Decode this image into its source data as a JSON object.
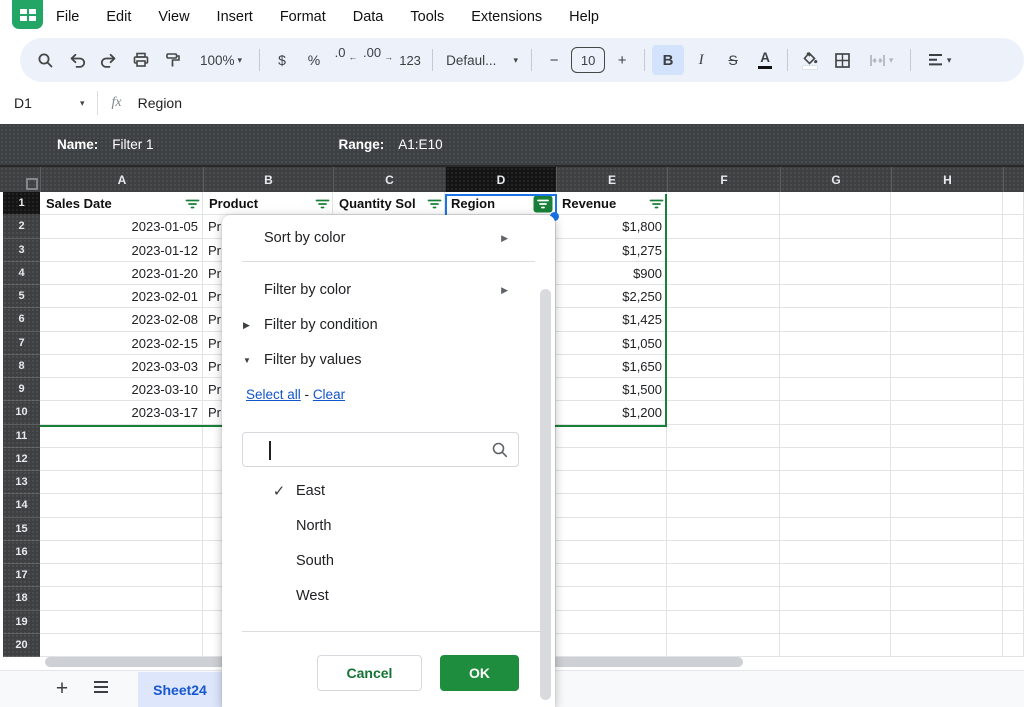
{
  "menubar": {
    "items": [
      "File",
      "Edit",
      "View",
      "Insert",
      "Format",
      "Data",
      "Tools",
      "Extensions",
      "Help"
    ]
  },
  "toolbar": {
    "zoom": "100%",
    "format_currency": "$",
    "format_percent": "%",
    "decrease_decimals": ".0",
    "increase_decimals": ".00",
    "more_formats": "123",
    "font_name": "Defaul...",
    "decrease_font_size": "−",
    "font_size": "10",
    "increase_font_size": "+",
    "bold": "B",
    "italic": "I",
    "strikethrough": "S",
    "text_color": "A"
  },
  "formula_bar": {
    "cell_reference": "D1",
    "fx_label": "fx",
    "value": "Region"
  },
  "filter_view_bar": {
    "name_label": "Name:",
    "name_value": "Filter 1",
    "range_label": "Range:",
    "range_value": "A1:E10"
  },
  "grid": {
    "column_letters": [
      "A",
      "B",
      "C",
      "D",
      "E",
      "F",
      "G",
      "H",
      ""
    ],
    "selected_column": "D",
    "selected_row": 1,
    "row_count": 20,
    "header_row": [
      {
        "label": "Sales Date",
        "filter_active": false
      },
      {
        "label": "Product",
        "filter_active": false
      },
      {
        "label": "Quantity Sol",
        "filter_active": false
      },
      {
        "label": "Region",
        "filter_active": true
      },
      {
        "label": "Revenue",
        "filter_active": false
      }
    ],
    "data_rows": [
      {
        "row": 2,
        "sales_date": "2023-01-05",
        "product": "Pr",
        "revenue": "$1,800"
      },
      {
        "row": 3,
        "sales_date": "2023-01-12",
        "product": "Pr",
        "revenue": "$1,275"
      },
      {
        "row": 4,
        "sales_date": "2023-01-20",
        "product": "Pr",
        "revenue": "$900"
      },
      {
        "row": 5,
        "sales_date": "2023-02-01",
        "product": "Pr",
        "revenue": "$2,250"
      },
      {
        "row": 6,
        "sales_date": "2023-02-08",
        "product": "Pr",
        "revenue": "$1,425"
      },
      {
        "row": 7,
        "sales_date": "2023-02-15",
        "product": "Pr",
        "revenue": "$1,050"
      },
      {
        "row": 8,
        "sales_date": "2023-03-03",
        "product": "Pr",
        "revenue": "$1,650"
      },
      {
        "row": 9,
        "sales_date": "2023-03-10",
        "product": "Pr",
        "revenue": "$1,500"
      },
      {
        "row": 10,
        "sales_date": "2023-03-17",
        "product": "Pr",
        "revenue": "$1,200"
      }
    ]
  },
  "filter_menu": {
    "sort_by_color": "Sort by color",
    "filter_by_color": "Filter by color",
    "filter_by_condition": "Filter by condition",
    "filter_by_values": "Filter by values",
    "select_all": "Select all",
    "link_separator": "-",
    "clear": "Clear",
    "search_value": "",
    "values": [
      {
        "label": "East",
        "checked": true
      },
      {
        "label": "North",
        "checked": false
      },
      {
        "label": "South",
        "checked": false
      },
      {
        "label": "West",
        "checked": false
      }
    ],
    "cancel": "Cancel",
    "ok": "OK"
  },
  "bottom_bar": {
    "add_sheet": "+",
    "sheet_tab": "Sheet24"
  },
  "icons": {
    "dropdown_arrow": "▾",
    "submenu_arrow": "▶",
    "collapsed_arrow": "▶",
    "expanded_arrow": "▼",
    "checkmark": "✓",
    "decrease_decimal_arrow": "←",
    "increase_decimal_arrow": "→"
  },
  "colors": {
    "filter_green": "#188038",
    "ok_green": "#1e8e3e",
    "link_blue": "#1155cc",
    "tab_blue": "#1657d0",
    "selection_blue": "#1a73e8",
    "dark_header": "#3e4042",
    "toolbar_bg": "#edf2fa"
  }
}
